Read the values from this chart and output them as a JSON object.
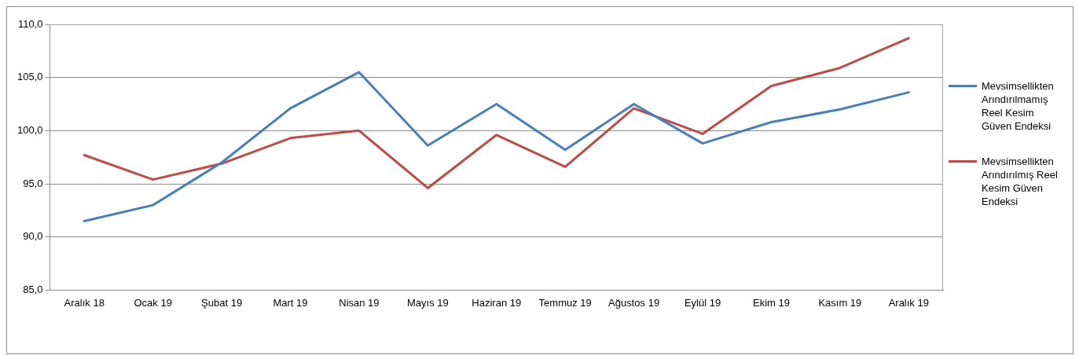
{
  "chart_data": {
    "type": "line",
    "categories": [
      "Aralık 18",
      "Ocak 19",
      "Şubat 19",
      "Mart 19",
      "Nisan 19",
      "Mayıs 19",
      "Haziran 19",
      "Temmuz 19",
      "Ağustos 19",
      "Eylül 19",
      "Ekim 19",
      "Kasım 19",
      "Aralık 19"
    ],
    "series": [
      {
        "name": "Mevsimsellikten Arındırılmamış Reel Kesim Güven Endeksi",
        "color": "#4a7ebb",
        "values": [
          91.5,
          93.0,
          97.0,
          102.1,
          105.5,
          98.6,
          102.5,
          98.2,
          102.5,
          98.8,
          100.8,
          102.0,
          103.6
        ]
      },
      {
        "name": "Mevsimsellikten Arındırılmış Reel Kesim Güven Endeksi",
        "color": "#be4b48",
        "values": [
          97.7,
          95.4,
          96.9,
          99.3,
          100.0,
          94.6,
          99.6,
          96.6,
          102.1,
          99.7,
          104.2,
          105.9,
          108.7
        ]
      }
    ],
    "ylim": [
      85,
      110
    ],
    "yticks": [
      {
        "value": 85,
        "label": "85,0"
      },
      {
        "value": 90,
        "label": "90,0"
      },
      {
        "value": 95,
        "label": "95,0"
      },
      {
        "value": 100,
        "label": "100,0"
      },
      {
        "value": 105,
        "label": "105,0"
      },
      {
        "value": 110,
        "label": "110,0"
      }
    ],
    "grid": "y",
    "legend": "right",
    "marker": "none",
    "line_style": "solid"
  }
}
